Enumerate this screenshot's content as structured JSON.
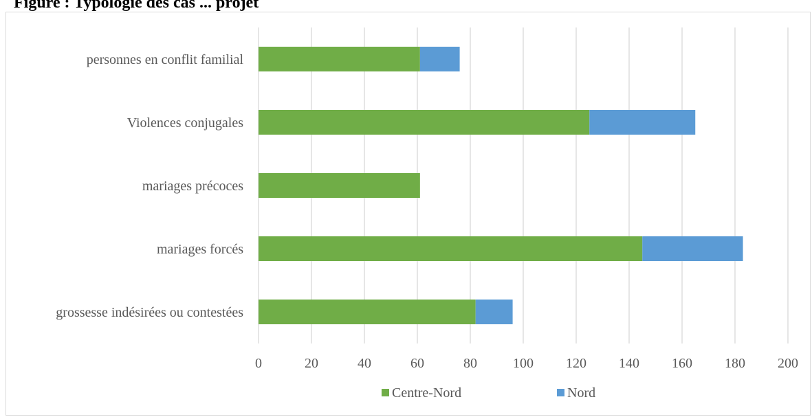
{
  "title": "Figure : Typologie des cas ... projet",
  "chart_data": {
    "type": "bar",
    "orientation": "horizontal",
    "stacked": true,
    "categories": [
      "personnes en conflit familial",
      "Violences conjugales",
      "mariages précoces",
      "mariages forcés",
      "grossesse indésirées ou contestées"
    ],
    "series": [
      {
        "name": "Centre-Nord",
        "color": "#70ad47",
        "values": [
          61,
          125,
          61,
          145,
          82
        ]
      },
      {
        "name": "Nord",
        "color": "#5b9bd5",
        "values": [
          15,
          40,
          0,
          38,
          14
        ]
      }
    ],
    "xlim": [
      0,
      200
    ],
    "xticks": [
      0,
      20,
      40,
      60,
      80,
      100,
      120,
      140,
      160,
      180,
      200
    ],
    "grid": true,
    "legend": "bottom"
  }
}
